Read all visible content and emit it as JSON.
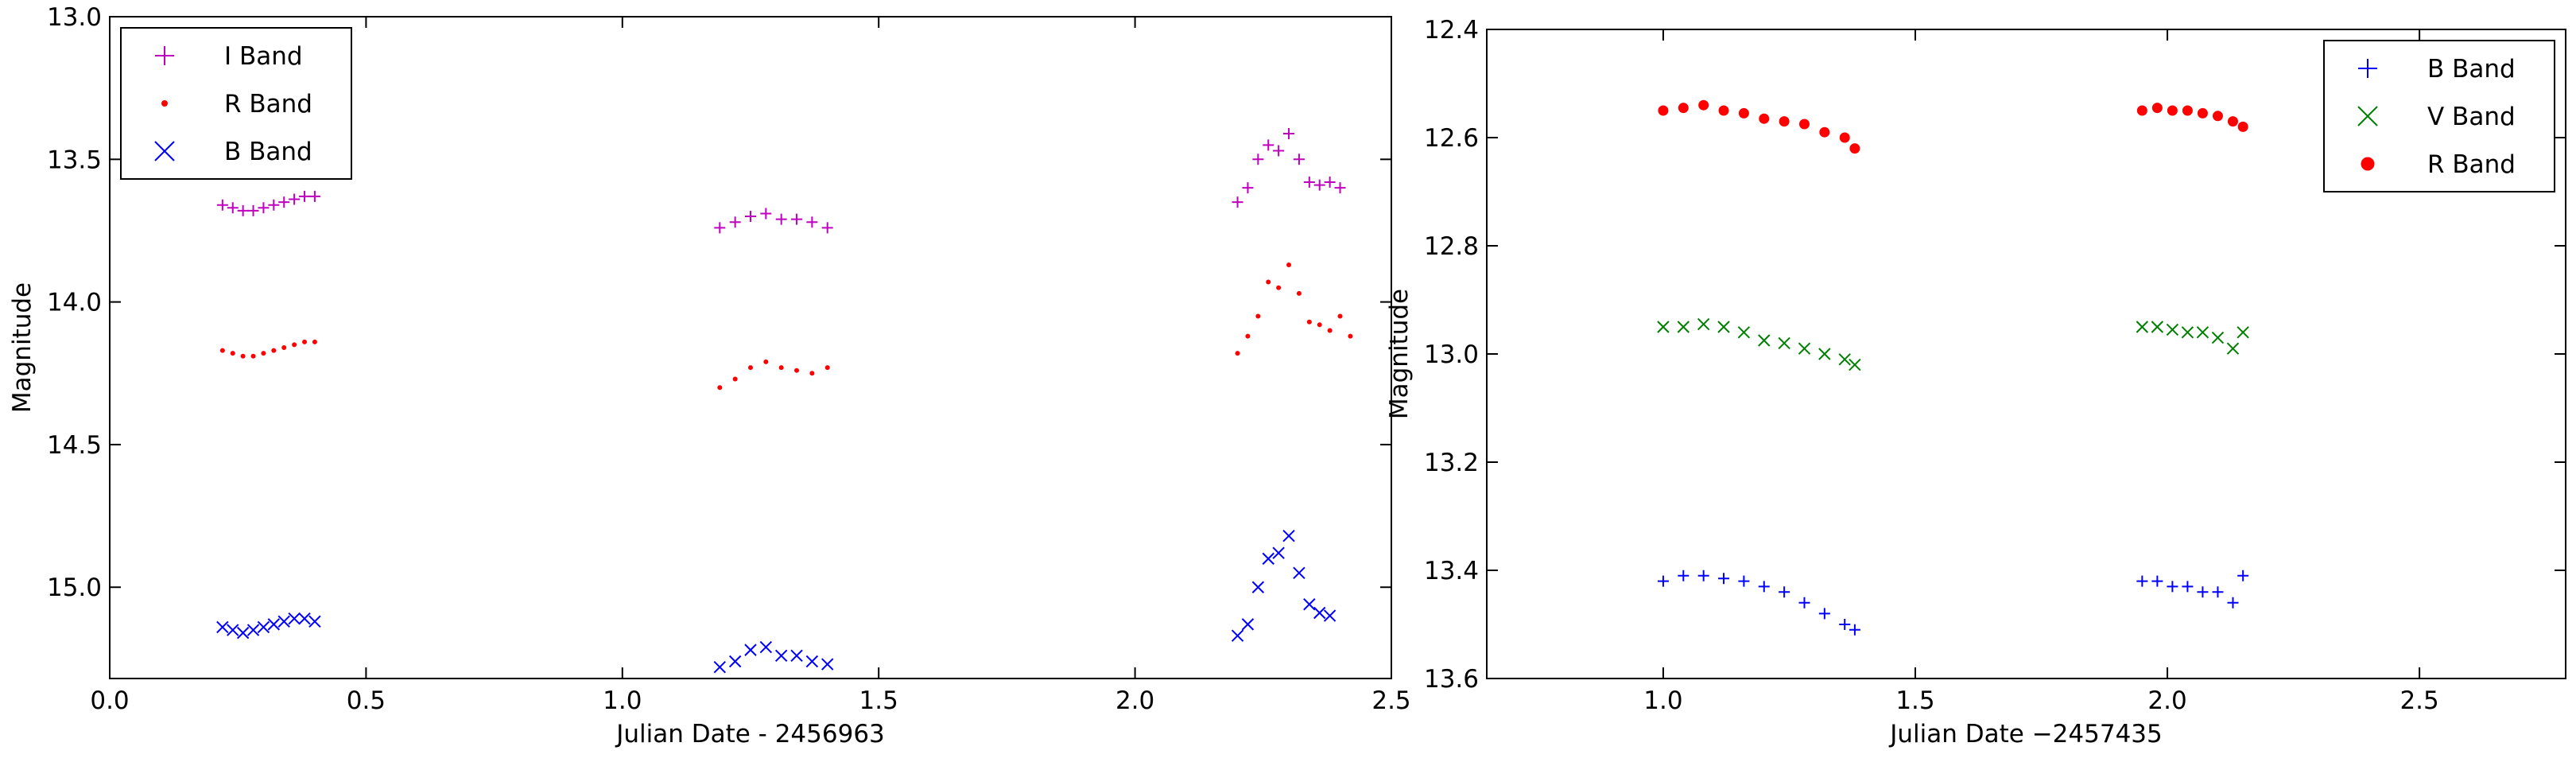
{
  "chart_data": [
    {
      "type": "scatter",
      "x_label": "Julian Date - 2456963",
      "y_label": "Magnitude",
      "xlim": [
        0,
        2.5
      ],
      "ylim": [
        13.0,
        15.32
      ],
      "invert_y": true,
      "xticks": [
        {
          "value": 0,
          "label": "0.0"
        },
        0.5,
        {
          "value": 1,
          "label": "1.0"
        },
        1.5,
        {
          "value": 2,
          "label": "2.0"
        },
        2.5
      ],
      "yticks": [
        {
          "value": 13,
          "label": "13.0"
        },
        13.5,
        {
          "value": 14,
          "label": "14.0"
        },
        14.5,
        {
          "value": 15,
          "label": "15.0"
        }
      ],
      "legend": "upper left",
      "series": [
        {
          "name": "I Band",
          "color": "#bf00bf",
          "marker": "+",
          "x": [
            0.22,
            0.24,
            0.26,
            0.28,
            0.3,
            0.32,
            0.34,
            0.36,
            0.38,
            0.4,
            1.19,
            1.22,
            1.25,
            1.28,
            1.31,
            1.34,
            1.37,
            1.4,
            2.2,
            2.22,
            2.24,
            2.26,
            2.28,
            2.3,
            2.32,
            2.34,
            2.36,
            2.38,
            2.4
          ],
          "values": [
            13.66,
            13.67,
            13.68,
            13.68,
            13.67,
            13.66,
            13.65,
            13.64,
            13.63,
            13.63,
            13.74,
            13.72,
            13.7,
            13.69,
            13.71,
            13.71,
            13.72,
            13.74,
            13.65,
            13.6,
            13.5,
            13.45,
            13.47,
            13.41,
            13.5,
            13.58,
            13.59,
            13.58,
            13.6
          ]
        },
        {
          "name": "R Band",
          "color": "#ff0000",
          "marker": ".",
          "x": [
            0.22,
            0.24,
            0.26,
            0.28,
            0.3,
            0.32,
            0.34,
            0.36,
            0.38,
            0.4,
            1.19,
            1.22,
            1.25,
            1.28,
            1.31,
            1.34,
            1.37,
            1.4,
            2.2,
            2.22,
            2.24,
            2.26,
            2.28,
            2.3,
            2.32,
            2.34,
            2.36,
            2.38,
            2.4,
            2.42
          ],
          "values": [
            14.17,
            14.18,
            14.19,
            14.19,
            14.18,
            14.17,
            14.16,
            14.15,
            14.14,
            14.14,
            14.3,
            14.27,
            14.23,
            14.21,
            14.23,
            14.24,
            14.25,
            14.23,
            14.18,
            14.12,
            14.05,
            13.93,
            13.95,
            13.87,
            13.97,
            14.07,
            14.08,
            14.1,
            14.05,
            14.12
          ]
        },
        {
          "name": "B Band",
          "color": "#0000ff",
          "marker": "x",
          "x": [
            0.22,
            0.24,
            0.26,
            0.28,
            0.3,
            0.32,
            0.34,
            0.36,
            0.38,
            0.4,
            1.19,
            1.22,
            1.25,
            1.28,
            1.31,
            1.34,
            1.37,
            1.4,
            2.2,
            2.22,
            2.24,
            2.26,
            2.28,
            2.3,
            2.32,
            2.34,
            2.36,
            2.38
          ],
          "values": [
            15.14,
            15.15,
            15.16,
            15.15,
            15.14,
            15.13,
            15.12,
            15.11,
            15.11,
            15.12,
            15.28,
            15.26,
            15.22,
            15.21,
            15.24,
            15.24,
            15.26,
            15.27,
            15.17,
            15.13,
            15.0,
            14.9,
            14.88,
            14.82,
            14.95,
            15.06,
            15.09,
            15.1
          ]
        }
      ]
    },
    {
      "type": "scatter",
      "x_label": "Julian Date −2457435",
      "y_label": "Magnitude",
      "xlim": [
        0.65,
        2.79
      ],
      "ylim": [
        12.4,
        13.6
      ],
      "invert_y": true,
      "xticks": [
        {
          "value": 1,
          "label": "1.0"
        },
        1.5,
        {
          "value": 2,
          "label": "2.0"
        },
        2.5
      ],
      "yticks": [
        12.4,
        12.6,
        12.8,
        {
          "value": 13,
          "label": "13.0"
        },
        13.2,
        13.4,
        13.6
      ],
      "legend": "upper right",
      "series": [
        {
          "name": "B Band",
          "color": "#0000ff",
          "marker": "+",
          "x": [
            1.0,
            1.04,
            1.08,
            1.12,
            1.16,
            1.2,
            1.24,
            1.28,
            1.32,
            1.36,
            1.38,
            1.95,
            1.98,
            2.01,
            2.04,
            2.07,
            2.1,
            2.13,
            2.15
          ],
          "values": [
            13.42,
            13.41,
            13.41,
            13.415,
            13.42,
            13.43,
            13.44,
            13.46,
            13.48,
            13.5,
            13.51,
            13.42,
            13.42,
            13.43,
            13.43,
            13.44,
            13.44,
            13.46,
            13.41
          ]
        },
        {
          "name": "V Band",
          "color": "#008000",
          "marker": "x",
          "x": [
            1.0,
            1.04,
            1.08,
            1.12,
            1.16,
            1.2,
            1.24,
            1.28,
            1.32,
            1.36,
            1.38,
            1.95,
            1.98,
            2.01,
            2.04,
            2.07,
            2.1,
            2.13,
            2.15
          ],
          "values": [
            12.95,
            12.95,
            12.945,
            12.95,
            12.96,
            12.975,
            12.98,
            12.99,
            13.0,
            13.01,
            13.02,
            12.95,
            12.95,
            12.955,
            12.96,
            12.96,
            12.97,
            12.99,
            12.96
          ]
        },
        {
          "name": "R Band",
          "color": "#ff0000",
          "marker": "o",
          "x": [
            1.0,
            1.04,
            1.08,
            1.12,
            1.16,
            1.2,
            1.24,
            1.28,
            1.32,
            1.36,
            1.38,
            1.95,
            1.98,
            2.01,
            2.04,
            2.07,
            2.1,
            2.13,
            2.15
          ],
          "values": [
            12.55,
            12.545,
            12.54,
            12.55,
            12.555,
            12.565,
            12.57,
            12.575,
            12.59,
            12.6,
            12.62,
            12.55,
            12.545,
            12.55,
            12.55,
            12.555,
            12.56,
            12.57,
            12.58
          ]
        }
      ]
    }
  ]
}
